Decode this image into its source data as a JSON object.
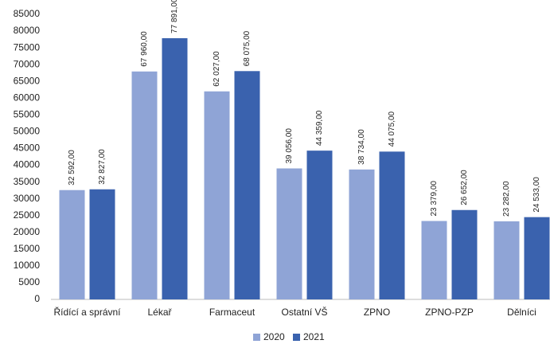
{
  "chart_data": {
    "type": "bar",
    "categories": [
      "Řídící a správní",
      "Lékař",
      "Farmaceut",
      "Ostatní VŠ",
      "ZPNO",
      "ZPNO-PZP",
      "Dělníci"
    ],
    "series": [
      {
        "name": "2020",
        "color": "#8fa4d6",
        "values": [
          32592,
          67960,
          62027,
          39056,
          38734,
          23379,
          23282
        ],
        "value_labels": [
          "32 592,00",
          "67 960,00",
          "62 027,00",
          "39 056,00",
          "38 734,00",
          "23 379,00",
          "23 282,00"
        ]
      },
      {
        "name": "2021",
        "color": "#3a62ae",
        "values": [
          32827,
          77891,
          68075,
          44359,
          44075,
          26652,
          24533
        ],
        "value_labels": [
          "32 827,00",
          "77 891,00",
          "68 075,00",
          "44 359,00",
          "44 075,00",
          "26 652,00",
          "24 533,00"
        ]
      }
    ],
    "ylim": [
      0,
      85000
    ],
    "yticks": [
      0,
      5000,
      10000,
      15000,
      20000,
      25000,
      30000,
      35000,
      40000,
      45000,
      50000,
      55000,
      60000,
      65000,
      70000,
      75000,
      80000,
      85000
    ],
    "legend": "bottom"
  }
}
